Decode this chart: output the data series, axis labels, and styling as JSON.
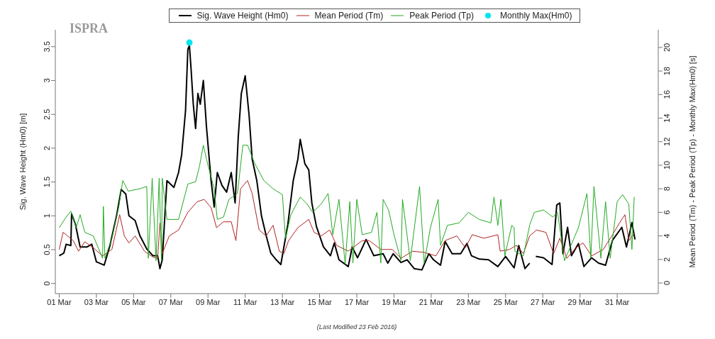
{
  "chart_data": {
    "type": "line",
    "ylabel": "Sig. Wave Height (Hm0) [m]",
    "y2label": "Mean Period (Tm) - Peak Period (Tp) - Monthly Max(Hm0) [s]",
    "annotations": [
      "ISPRA",
      "(Last Modified 23 Feb 2016)"
    ],
    "xlim": [
      "--02-29T19:00",
      "--04-02T05:00"
    ],
    "xticks": [
      {
        "value": "--03-01",
        "label": "01 Mar"
      },
      {
        "value": "--03-03",
        "label": "03 Mar"
      },
      {
        "value": "--03-05",
        "label": "05 Mar"
      },
      {
        "value": "--03-07",
        "label": "07 Mar"
      },
      {
        "value": "--03-09",
        "label": "09 Mar"
      },
      {
        "value": "--03-11",
        "label": "11 Mar"
      },
      {
        "value": "--03-13",
        "label": "13 Mar"
      },
      {
        "value": "--03-15",
        "label": "15 Mar"
      },
      {
        "value": "--03-17",
        "label": "17 Mar"
      },
      {
        "value": "--03-19",
        "label": "19 Mar"
      },
      {
        "value": "--03-21",
        "label": "21 Mar"
      },
      {
        "value": "--03-23",
        "label": "23 Mar"
      },
      {
        "value": "--03-25",
        "label": "25 Mar"
      },
      {
        "value": "--03-27",
        "label": "27 Mar"
      },
      {
        "value": "--03-29",
        "label": "29 Mar"
      },
      {
        "value": "--03-31",
        "label": "31 Mar"
      }
    ],
    "ylim": [
      -0.15,
      3.75
    ],
    "yticks": [
      0,
      0.5,
      1,
      1.5,
      2,
      2.5,
      3,
      3.5
    ],
    "y2lim": [
      -0.9,
      21.5
    ],
    "y2ticks": [
      0,
      2,
      4,
      6,
      8,
      10,
      12,
      14,
      16,
      18,
      20
    ],
    "grid": false,
    "legend": "top",
    "line_style": "solid",
    "series": [
      {
        "name": "Sig. Wave Height (Hm0)",
        "color": "#000000",
        "x": [
          "--03-01T00:00",
          "--03-01T06:00",
          "--03-01T09:00",
          "--03-01T15:00",
          "--03-01T16:00",
          "--03-01T21:00",
          "--03-02T03:00",
          "--03-02T12:00",
          "--03-02T18:00",
          "--03-03T00:00",
          "--03-03T10:00",
          "--03-03T17:00",
          "--03-04T02:00",
          "--03-04T08:00",
          "--03-04T14:00",
          "--03-04T18:00",
          "--03-05T02:00",
          "--03-05T08:00",
          "--03-05T17:00",
          "--03-06T01:00",
          "--03-06T07:00",
          "--03-06T10:00",
          "--03-06T13:00",
          "--03-06T19:00",
          "--03-07T04:00",
          "--03-07T10:00",
          "--03-07T14:00",
          "--03-07T19:00",
          "--03-07T22:00",
          "--03-08T00:00",
          "--03-08T02:00",
          "--03-08T05:00",
          "--03-08T08:00",
          "--03-08T11:00",
          "--03-08T14:00",
          "--03-08T18:00",
          "--03-08T22:00",
          "--03-09T04:00",
          "--03-09T08:00",
          "--03-09T12:00",
          "--03-09T18:00",
          "--03-10T00:00",
          "--03-10T06:00",
          "--03-10T11:00",
          "--03-10T15:00",
          "--03-10T19:00",
          "--03-11T00:00",
          "--03-11T05:00",
          "--03-11T09:00",
          "--03-11T15:00",
          "--03-11T21:00",
          "--03-12T03:00",
          "--03-12T09:00",
          "--03-12T16:00",
          "--03-12T22:00",
          "--03-13T07:00",
          "--03-13T14:00",
          "--03-13T20:00",
          "--03-13T23:00",
          "--03-14T05:00",
          "--03-14T10:00",
          "--03-14T14:00",
          "--03-14T20:00",
          "--03-15T05:00",
          "--03-15T14:00",
          "--03-15T19:00",
          "--03-16T01:00",
          "--03-16T13:00",
          "--03-16T18:00",
          "--03-17T01:00",
          "--03-17T12:00",
          "--03-17T22:00",
          "--03-18T10:00",
          "--03-18T16:00",
          "--03-18T23:00",
          "--03-19T09:00",
          "--03-19T17:00",
          "--03-20T02:00",
          "--03-20T12:00",
          "--03-20T21:00",
          "--03-21T03:00",
          "--03-21T12:00",
          "--03-21T18:00",
          "--03-22T03:00",
          "--03-22T14:00",
          "--03-22T22:00",
          "--03-23T04:00",
          "--03-23T14:00",
          "--03-24T02:00",
          "--03-24T14:00",
          "--03-25T00:00",
          "--03-25T11:00",
          "--03-25T17:00",
          "--03-26T01:00",
          "--03-26T07:00",
          "--03-26T10:00",
          "--03-26T15:00",
          "--03-27T01:00",
          "--03-27T12:00",
          "--03-27T18:00",
          "--03-27T22:00",
          "--03-28T02:00",
          "--03-28T08:00",
          "--03-28T13:00",
          "--03-28T22:00",
          "--03-29T05:00",
          "--03-29T15:00",
          "--03-30T00:00",
          "--03-30T09:00",
          "--03-30T18:00",
          "--03-31T06:00",
          "--03-31T12:00",
          "--03-31T19:00",
          "--03-31T23:00"
        ],
        "values": [
          0.41,
          0.45,
          0.58,
          0.56,
          1.03,
          0.87,
          0.54,
          0.54,
          0.58,
          0.32,
          0.27,
          0.54,
          1.0,
          1.39,
          1.32,
          1.0,
          0.93,
          0.71,
          0.51,
          0.41,
          0.41,
          0.22,
          0.35,
          1.52,
          1.42,
          1.64,
          1.9,
          2.55,
          3.46,
          3.52,
          3.2,
          2.65,
          2.29,
          2.81,
          2.65,
          3.0,
          2.32,
          1.52,
          1.13,
          1.64,
          1.45,
          1.35,
          1.64,
          1.19,
          2.16,
          2.81,
          3.07,
          2.49,
          1.84,
          1.52,
          1.0,
          0.71,
          0.45,
          0.35,
          0.28,
          0.87,
          1.52,
          1.84,
          2.13,
          1.77,
          1.68,
          1.19,
          0.84,
          0.54,
          0.41,
          0.6,
          0.35,
          0.25,
          0.54,
          0.38,
          0.65,
          0.41,
          0.44,
          0.3,
          0.44,
          0.31,
          0.35,
          0.22,
          0.2,
          0.44,
          0.35,
          0.27,
          0.62,
          0.44,
          0.44,
          0.59,
          0.41,
          0.36,
          0.35,
          0.25,
          0.4,
          0.23,
          0.56,
          0.22,
          0.3,
          null,
          0.4,
          0.38,
          0.28,
          1.16,
          1.19,
          0.44,
          0.83,
          0.41,
          0.59,
          0.25,
          0.38,
          0.3,
          0.27,
          0.64,
          0.83,
          0.54,
          0.9,
          0.65
        ]
      },
      {
        "name": "Mean Period (Tm)",
        "color": "#b22222",
        "axis": "y2",
        "x": [
          "--03-01T00:00",
          "--03-01T05:00",
          "--03-01T09:00",
          "--03-01T18:00",
          "--03-02T01:00",
          "--03-02T09:00",
          "--03-02T20:00",
          "--03-03T08:00",
          "--03-03T20:00",
          "--03-04T06:00",
          "--03-04T12:00",
          "--03-04T18:00",
          "--03-05T02:00",
          "--03-05T14:00",
          "--03-06T01:00",
          "--03-06T07:00",
          "--03-06T10:00",
          "--03-06T13:00",
          "--03-06T22:00",
          "--03-07T10:00",
          "--03-07T22:00",
          "--03-08T10:00",
          "--03-08T19:00",
          "--03-09T04:00",
          "--03-09T11:00",
          "--03-09T20:00",
          "--03-10T06:00",
          "--03-10T12:00",
          "--03-10T18:00",
          "--03-11T03:00",
          "--03-11T09:00",
          "--03-11T18:00",
          "--03-12T03:00",
          "--03-12T12:00",
          "--03-12T20:00",
          "--03-13T02:00",
          "--03-13T08:00",
          "--03-13T20:00",
          "--03-14T10:00",
          "--03-14T17:00",
          "--03-15T02:00",
          "--03-15T13:00",
          "--03-15T22:00",
          "--03-16T13:00",
          "--03-17T07:00",
          "--03-17T16:00",
          "--03-18T07:00",
          "--03-18T22:00",
          "--03-19T09:00",
          "--03-20T00:00",
          "--03-20T15:00",
          "--03-21T06:00",
          "--03-21T18:00",
          "--03-22T09:00",
          "--03-22T20:00",
          "--03-23T05:00",
          "--03-23T20:00",
          "--03-24T14:00",
          "--03-24T17:00",
          "--03-25T05:00",
          "--03-25T14:00",
          "--03-25T23:00",
          "--03-26T07:00",
          "--03-26T16:00",
          "--03-27T04:00",
          "--03-27T14:00",
          "--03-27T22:00",
          "--03-28T07:00",
          "--03-28T19:00",
          "--03-29T04:00",
          "--03-29T15:00",
          "--03-30T06:00",
          "--03-30T18:00",
          "--03-31T03:00",
          "--03-31T10:00",
          "--03-31T15:00",
          "--03-31T22:00"
        ],
        "values": [
          2.85,
          4.3,
          4.1,
          3.6,
          2.7,
          3.5,
          3.0,
          2.3,
          2.85,
          5.8,
          4.0,
          3.4,
          4.0,
          2.7,
          2.2,
          2.1,
          5.1,
          2.5,
          4.0,
          4.5,
          6.0,
          6.9,
          7.1,
          6.4,
          4.7,
          5.2,
          5.2,
          3.6,
          8.0,
          8.7,
          7.6,
          4.5,
          4.0,
          4.9,
          2.7,
          2.5,
          3.6,
          4.7,
          5.4,
          4.3,
          4.0,
          4.5,
          3.2,
          2.7,
          3.6,
          3.6,
          2.85,
          2.85,
          2.1,
          2.7,
          2.6,
          2.3,
          3.6,
          4.0,
          3.0,
          4.1,
          3.8,
          4.1,
          2.7,
          2.85,
          3.2,
          2.5,
          4.0,
          4.5,
          4.3,
          2.5,
          3.8,
          2.1,
          3.0,
          3.4,
          2.3,
          2.85,
          4.1,
          5.1,
          5.8,
          3.6,
          4.2
        ]
      },
      {
        "name": "Peak Period (Tp)",
        "color": "#22aa22",
        "axis": "y2",
        "x": [
          "--03-01T00:00",
          "--03-01T09:00",
          "--03-01T15:00",
          "--03-01T22:00",
          "--03-02T03:00",
          "--03-02T09:00",
          "--03-02T20:00",
          "--03-03T08:00",
          "--03-03T09:00",
          "--03-03T11:00",
          "--03-03T20:00",
          "--03-04T05:00",
          "--03-04T10:00",
          "--03-04T17:00",
          "--03-05T08:00",
          "--03-05T17:00",
          "--03-05T19:00",
          "--03-06T00:00",
          "--03-06T05:00",
          "--03-06T09:00",
          "--03-06T12:00",
          "--03-06T13:00",
          "--03-06T19:00",
          "--03-07T10:00",
          "--03-07T22:00",
          "--03-08T08:00",
          "--03-08T13:00",
          "--03-08T18:00",
          "--03-09T00:00",
          "--03-09T08:00",
          "--03-09T12:00",
          "--03-09T20:00",
          "--03-10T03:00",
          "--03-10T14:00",
          "--03-10T21:00",
          "--03-11T03:00",
          "--03-11T12:00",
          "--03-12T00:00",
          "--03-12T12:00",
          "--03-13T00:00",
          "--03-13T04:00",
          "--03-13T11:00",
          "--03-13T23:00",
          "--03-14T08:00",
          "--03-14T15:00",
          "--03-15T02:00",
          "--03-15T11:00",
          "--03-15T17:00",
          "--03-16T01:00",
          "--03-16T09:00",
          "--03-16T15:00",
          "--03-16T19:00",
          "--03-17T00:00",
          "--03-17T07:00",
          "--03-17T19:00",
          "--03-18T02:00",
          "--03-18T07:00",
          "--03-18T10:00",
          "--03-18T17:00",
          "--03-19T00:00",
          "--03-19T09:00",
          "--03-19T11:00",
          "--03-19T21:00",
          "--03-20T09:00",
          "--03-20T15:00",
          "--03-20T23:00",
          "--03-21T09:00",
          "--03-21T12:00",
          "--03-21T21:00",
          "--03-22T12:00",
          "--03-23T00:00",
          "--03-23T14:00",
          "--03-24T05:00",
          "--03-24T09:00",
          "--03-24T14:00",
          "--03-24T18:00",
          "--03-24T23:00",
          "--03-25T08:00",
          "--03-25T11:00",
          "--03-25T12:00",
          "--03-25T23:00",
          "--03-26T07:00",
          "--03-26T13:00",
          "--03-27T01:00",
          "--03-27T13:00",
          "--03-27T19:00",
          "--03-28T04:00",
          "--03-28T22:00",
          "--03-29T09:00",
          "--03-29T14:00",
          "--03-29T18:00",
          "--03-30T03:00",
          "--03-30T09:00",
          "--03-30T15:00",
          "--03-31T00:00",
          "--03-31T07:00",
          "--03-31T15:00",
          "--03-31T19:00",
          "--03-31T22:00"
        ],
        "values": [
          4.7,
          5.6,
          6.1,
          4.7,
          5.8,
          4.3,
          4.0,
          2.1,
          6.5,
          2.1,
          3.8,
          6.5,
          8.7,
          7.8,
          8.0,
          8.2,
          2.1,
          8.9,
          1.9,
          8.9,
          1.9,
          8.9,
          5.4,
          5.4,
          8.4,
          8.6,
          9.9,
          11.7,
          10.0,
          8.0,
          5.4,
          5.6,
          7.1,
          7.6,
          11.7,
          11.7,
          10.2,
          8.7,
          8.0,
          7.5,
          3.8,
          5.8,
          7.3,
          6.7,
          6.0,
          6.7,
          7.6,
          4.1,
          7.1,
          1.6,
          6.9,
          1.7,
          7.1,
          4.1,
          4.3,
          6.0,
          1.7,
          7.1,
          6.2,
          4.1,
          1.9,
          7.1,
          1.9,
          8.2,
          1.7,
          4.7,
          7.1,
          3.2,
          4.9,
          5.1,
          6.0,
          5.4,
          5.1,
          7.3,
          4.9,
          7.1,
          2.3,
          4.9,
          4.7,
          2.7,
          2.3,
          4.9,
          6.0,
          6.2,
          5.6,
          6.0,
          1.9,
          4.7,
          7.6,
          2.1,
          8.2,
          2.1,
          6.9,
          2.1,
          6.9,
          7.5,
          6.7,
          2.85,
          7.3
        ]
      },
      {
        "name": "Monthly Max(Hm0)",
        "type": "scatter",
        "color": "#00e5ee",
        "marker": "circle",
        "x": [
          "--03-08T00:00"
        ],
        "values": [
          3.56
        ]
      }
    ]
  }
}
